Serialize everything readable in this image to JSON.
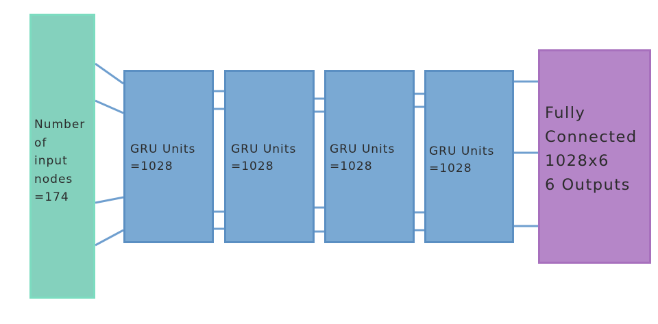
{
  "diagram": {
    "input_node": {
      "lines": [
        "Number",
        "of",
        "input",
        "nodes",
        "=174"
      ]
    },
    "gru_layers": [
      {
        "title": "GRU Units",
        "value": "=1028"
      },
      {
        "title": "GRU Units",
        "value": "=1028"
      },
      {
        "title": "GRU Units",
        "value": "=1028"
      },
      {
        "title": "GRU Units",
        "value": "=1028"
      }
    ],
    "output_node": {
      "lines": [
        "Fully",
        "Connected",
        "1028x6",
        "6 Outputs"
      ]
    },
    "colors": {
      "input_fill": "#84d1bd",
      "gru_fill": "#7aa9d3",
      "output_fill": "#b586c8",
      "connector": "#6f9fcf"
    }
  }
}
